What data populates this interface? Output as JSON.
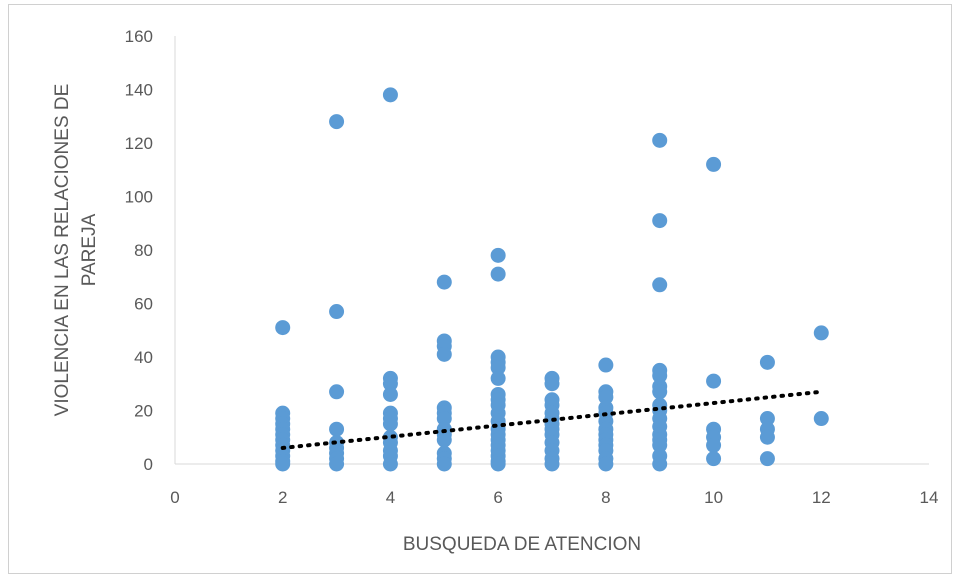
{
  "chart_data": {
    "type": "scatter",
    "xlabel": "BUSQUEDA DE ATENCION",
    "ylabel_lines": [
      "VIOLENCIA EN LAS RELACIONES DE",
      "PAREJA"
    ],
    "xlim": [
      0,
      14
    ],
    "ylim": [
      0,
      160
    ],
    "x_ticks": [
      0,
      2,
      4,
      6,
      8,
      10,
      12,
      14
    ],
    "y_ticks": [
      0,
      20,
      40,
      60,
      80,
      100,
      120,
      140,
      160
    ],
    "grid": false,
    "legend": "none",
    "marker_color": "#5b9bd5",
    "trendline": {
      "type": "linear",
      "style": "dotted",
      "color": "#000000",
      "x": [
        2,
        12
      ],
      "y": [
        6,
        27
      ]
    },
    "points": [
      [
        2,
        51
      ],
      [
        2,
        19
      ],
      [
        2,
        17
      ],
      [
        2,
        15
      ],
      [
        2,
        13
      ],
      [
        2,
        11
      ],
      [
        2,
        9
      ],
      [
        2,
        7
      ],
      [
        2,
        5
      ],
      [
        2,
        3
      ],
      [
        2,
        1
      ],
      [
        2,
        0
      ],
      [
        3,
        128
      ],
      [
        3,
        57
      ],
      [
        3,
        27
      ],
      [
        3,
        13
      ],
      [
        3,
        8
      ],
      [
        3,
        6
      ],
      [
        3,
        4
      ],
      [
        3,
        2
      ],
      [
        3,
        0
      ],
      [
        4,
        138
      ],
      [
        4,
        32
      ],
      [
        4,
        30
      ],
      [
        4,
        26
      ],
      [
        4,
        19
      ],
      [
        4,
        17
      ],
      [
        4,
        15
      ],
      [
        4,
        10
      ],
      [
        4,
        8
      ],
      [
        4,
        5
      ],
      [
        4,
        3
      ],
      [
        4,
        0
      ],
      [
        5,
        68
      ],
      [
        5,
        46
      ],
      [
        5,
        44
      ],
      [
        5,
        41
      ],
      [
        5,
        21
      ],
      [
        5,
        19
      ],
      [
        5,
        17
      ],
      [
        5,
        13
      ],
      [
        5,
        11
      ],
      [
        5,
        9
      ],
      [
        5,
        4
      ],
      [
        5,
        2
      ],
      [
        5,
        0
      ],
      [
        6,
        78
      ],
      [
        6,
        71
      ],
      [
        6,
        40
      ],
      [
        6,
        38
      ],
      [
        6,
        36
      ],
      [
        6,
        32
      ],
      [
        6,
        26
      ],
      [
        6,
        24
      ],
      [
        6,
        22
      ],
      [
        6,
        19
      ],
      [
        6,
        16
      ],
      [
        6,
        13
      ],
      [
        6,
        11
      ],
      [
        6,
        9
      ],
      [
        6,
        7
      ],
      [
        6,
        5
      ],
      [
        6,
        3
      ],
      [
        6,
        1
      ],
      [
        6,
        0
      ],
      [
        7,
        32
      ],
      [
        7,
        30
      ],
      [
        7,
        24
      ],
      [
        7,
        22
      ],
      [
        7,
        19
      ],
      [
        7,
        17
      ],
      [
        7,
        15
      ],
      [
        7,
        13
      ],
      [
        7,
        11
      ],
      [
        7,
        8
      ],
      [
        7,
        5
      ],
      [
        7,
        2
      ],
      [
        7,
        0
      ],
      [
        8,
        37
      ],
      [
        8,
        27
      ],
      [
        8,
        25
      ],
      [
        8,
        21
      ],
      [
        8,
        19
      ],
      [
        8,
        16
      ],
      [
        8,
        13
      ],
      [
        8,
        11
      ],
      [
        8,
        9
      ],
      [
        8,
        7
      ],
      [
        8,
        5
      ],
      [
        8,
        2
      ],
      [
        8,
        0
      ],
      [
        9,
        121
      ],
      [
        9,
        91
      ],
      [
        9,
        67
      ],
      [
        9,
        35
      ],
      [
        9,
        33
      ],
      [
        9,
        29
      ],
      [
        9,
        27
      ],
      [
        9,
        22
      ],
      [
        9,
        20
      ],
      [
        9,
        17
      ],
      [
        9,
        14
      ],
      [
        9,
        11
      ],
      [
        9,
        9
      ],
      [
        9,
        7
      ],
      [
        9,
        3
      ],
      [
        9,
        0
      ],
      [
        10,
        112
      ],
      [
        10,
        31
      ],
      [
        10,
        13
      ],
      [
        10,
        10
      ],
      [
        10,
        7
      ],
      [
        10,
        2
      ],
      [
        11,
        38
      ],
      [
        11,
        17
      ],
      [
        11,
        13
      ],
      [
        11,
        10
      ],
      [
        11,
        2
      ],
      [
        12,
        49
      ],
      [
        12,
        17
      ]
    ]
  }
}
